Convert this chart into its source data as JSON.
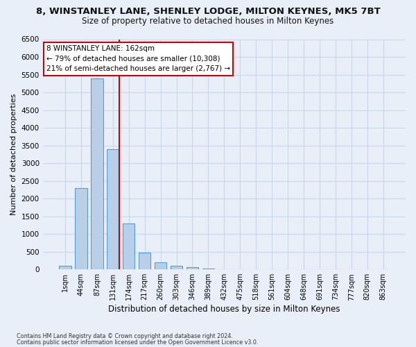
{
  "title": "8, WINSTANLEY LANE, SHENLEY LODGE, MILTON KEYNES, MK5 7BT",
  "subtitle": "Size of property relative to detached houses in Milton Keynes",
  "xlabel": "Distribution of detached houses by size in Milton Keynes",
  "ylabel": "Number of detached properties",
  "bin_labels": [
    "1sqm",
    "44sqm",
    "87sqm",
    "131sqm",
    "174sqm",
    "217sqm",
    "260sqm",
    "303sqm",
    "346sqm",
    "389sqm",
    "432sqm",
    "475sqm",
    "518sqm",
    "561sqm",
    "604sqm",
    "648sqm",
    "691sqm",
    "734sqm",
    "777sqm",
    "820sqm",
    "863sqm"
  ],
  "bar_values": [
    100,
    2300,
    5400,
    3400,
    1300,
    480,
    200,
    100,
    70,
    30,
    10,
    0,
    0,
    0,
    0,
    0,
    0,
    0,
    0,
    0,
    0
  ],
  "bar_color": "#b8cfe8",
  "bar_edge_color": "#5b9bd5",
  "vline_color": "#cc0000",
  "vline_x": 3.4,
  "annotation_text": "8 WINSTANLEY LANE: 162sqm\n← 79% of detached houses are smaller (10,308)\n21% of semi-detached houses are larger (2,767) →",
  "annotation_box_facecolor": "#ffffff",
  "annotation_box_edgecolor": "#cc0000",
  "ylim_max": 6500,
  "yticks": [
    0,
    500,
    1000,
    1500,
    2000,
    2500,
    3000,
    3500,
    4000,
    4500,
    5000,
    5500,
    6000,
    6500
  ],
  "grid_color": "#c8d8ea",
  "bg_color": "#e8eff8",
  "footer_line1": "Contains HM Land Registry data © Crown copyright and database right 2024.",
  "footer_line2": "Contains public sector information licensed under the Open Government Licence v3.0.",
  "title_fontsize": 9.5,
  "subtitle_fontsize": 8.5,
  "annotation_fontsize": 7.5,
  "ylabel_fontsize": 8,
  "xlabel_fontsize": 8.5,
  "tick_fontsize": 7,
  "ytick_fontsize": 7.5,
  "footer_fontsize": 5.8
}
